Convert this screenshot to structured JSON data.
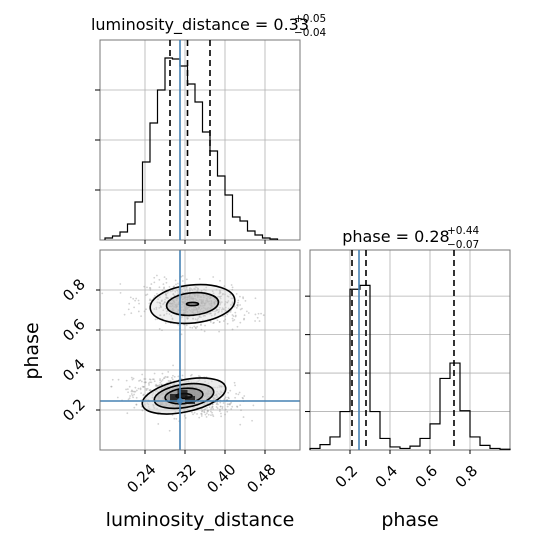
{
  "chart_data": {
    "type": "corner",
    "parameters": [
      "luminosity_distance",
      "phase"
    ],
    "truths": {
      "luminosity_distance": 0.31,
      "phase": 0.245
    },
    "colors": {
      "truth_line": "#4682b4",
      "hist": "#000000",
      "grid": "#b0b0b0",
      "frame": "#777777"
    },
    "grid": true,
    "panels": {
      "luminosity_distance": {
        "title": {
          "label": "luminosity_distance = 0.33",
          "plus": "+0.05",
          "minus": "−0.04"
        },
        "xlim": [
          0.15,
          0.55
        ],
        "ymax": 2000,
        "quantiles": [
          0.29,
          0.325,
          0.37
        ],
        "bins": {
          "edges": [
            0.16,
            0.175,
            0.19,
            0.205,
            0.22,
            0.235,
            0.25,
            0.265,
            0.28,
            0.295,
            0.31,
            0.325,
            0.34,
            0.355,
            0.37,
            0.385,
            0.4,
            0.415,
            0.43,
            0.445,
            0.46,
            0.475,
            0.49,
            0.505
          ],
          "counts": [
            20,
            40,
            80,
            160,
            380,
            780,
            1170,
            1500,
            1820,
            1810,
            1740,
            1560,
            1380,
            1080,
            890,
            640,
            450,
            230,
            190,
            90,
            50,
            20,
            10
          ]
        }
      },
      "phase": {
        "title": {
          "label": "phase = 0.28",
          "plus": "+0.44",
          "minus": "−0.07"
        },
        "xlim": [
          0.0,
          1.0
        ],
        "ymax": 2600,
        "quantiles": [
          0.21,
          0.28,
          0.72
        ],
        "bins": {
          "edges": [
            0.0,
            0.05,
            0.1,
            0.15,
            0.2,
            0.25,
            0.3,
            0.35,
            0.4,
            0.45,
            0.5,
            0.55,
            0.6,
            0.65,
            0.7,
            0.75,
            0.8,
            0.85,
            0.9,
            0.95,
            1.0
          ],
          "counts": [
            20,
            70,
            170,
            500,
            2090,
            2140,
            500,
            150,
            40,
            20,
            50,
            150,
            340,
            930,
            1130,
            510,
            170,
            60,
            20,
            10
          ]
        }
      },
      "joint": {
        "xlim": [
          0.15,
          0.55
        ],
        "ylim": [
          0.0,
          1.0
        ],
        "modes": [
          {
            "cx": 0.318,
            "cy": 0.27,
            "levels": [
              {
                "rx": 0.085,
                "ry": 0.08,
                "skew": -0.02
              },
              {
                "rx": 0.06,
                "ry": 0.058,
                "skew": -0.015
              },
              {
                "rx": 0.038,
                "ry": 0.038,
                "skew": -0.01
              },
              {
                "rx": 0.016,
                "ry": 0.012,
                "skew": 0
              }
            ]
          },
          {
            "cx": 0.335,
            "cy": 0.73,
            "levels": [
              {
                "rx": 0.085,
                "ry": 0.095,
                "skew": -0.01
              },
              {
                "rx": 0.052,
                "ry": 0.056,
                "skew": -0.008
              },
              {
                "rx": 0.012,
                "ry": 0.008,
                "skew": 0
              }
            ]
          }
        ]
      }
    },
    "axis_labels": {
      "x_left": "luminosity_distance",
      "x_right": "phase",
      "y_lower": "phase"
    },
    "ticks": {
      "ld_x": [
        "0.24",
        "0.32",
        "0.40",
        "0.48"
      ],
      "phase_y": [
        "0.2",
        "0.4",
        "0.6",
        "0.8"
      ],
      "phase_x": [
        "0.2",
        "0.4",
        "0.6",
        "0.8"
      ]
    }
  }
}
